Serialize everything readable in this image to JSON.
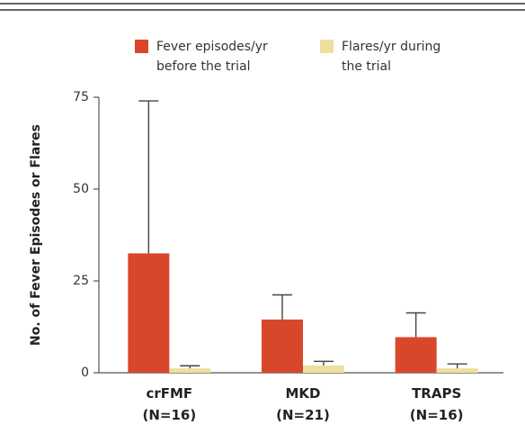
{
  "chart_data": {
    "type": "bar",
    "categories": [
      "crFMF\n(N=16)",
      "MKD\n(N=21)",
      "TRAPS\n(N=16)"
    ],
    "series": [
      {
        "name": "Fever episodes/yr\nbefore the trial",
        "color": "#d9472b",
        "values": [
          32.5,
          14.5,
          9.7
        ],
        "errors": [
          41.5,
          6.7,
          6.6
        ]
      },
      {
        "name": "Flares/yr during\nthe trial",
        "color": "#ede09e",
        "values": [
          1.2,
          2.0,
          1.2
        ],
        "errors": [
          0.7,
          1.1,
          1.2
        ]
      }
    ],
    "y_label": "No. of Fever Episodes or Flares",
    "ylim": [
      0,
      75
    ],
    "yticks": [
      0,
      25,
      50,
      75
    ],
    "grid": false
  }
}
